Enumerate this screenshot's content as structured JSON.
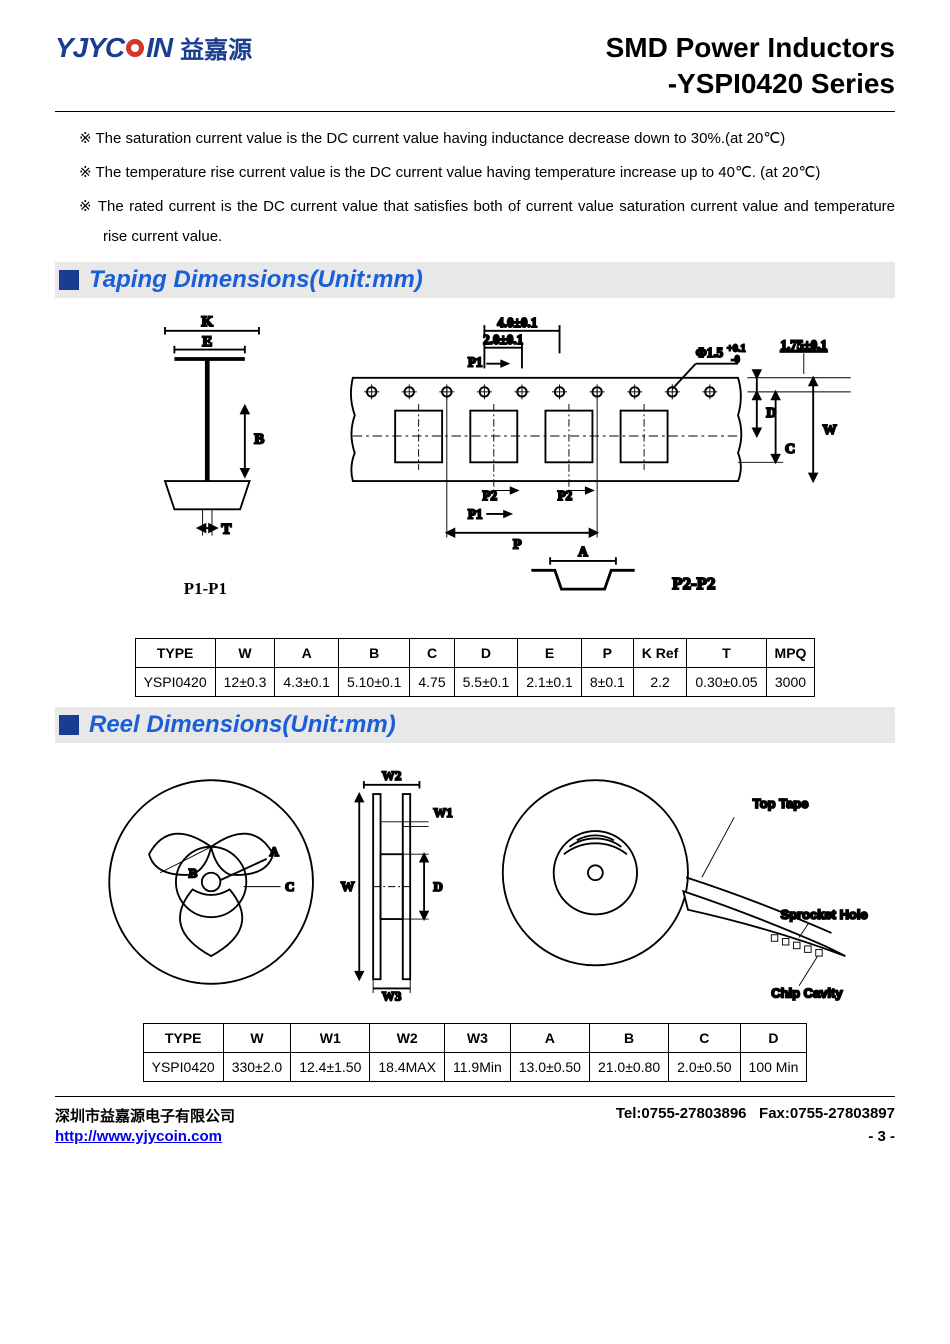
{
  "header": {
    "logo_en": "YJYC  IN",
    "logo_cn": "益嘉源",
    "title1": "SMD Power Inductors",
    "title2": "-YSPI0420 Series"
  },
  "notes": [
    "The saturation current value is the DC current value having inductance decrease down to 30%.(at 20℃)",
    "The temperature rise current value is the DC current value having temperature increase up to 40℃. (at 20℃)",
    "The rated current is the DC current value that satisfies both of current value saturation current value and temperature rise current value."
  ],
  "section1": {
    "title": "Taping Dimensions(Unit:mm)"
  },
  "section2": {
    "title": "Reel Dimensions(Unit:mm)"
  },
  "taping_diagram": {
    "labels": {
      "K": "K",
      "E": "E",
      "B": "B",
      "T": "T",
      "P1P1": "P1-P1",
      "d40": "4.0±0.1",
      "d20": "2.0±0.1",
      "P1": "P1",
      "P2": "P2",
      "P": "P",
      "A": "A",
      "phi": "Φ1.5",
      "phi_tol": "+0.1\n -0",
      "d175": "1.75±0.1",
      "C": "C",
      "D": "D",
      "W": "W",
      "P2P2": "P2-P2"
    },
    "stroke": "#000000",
    "stroke_w": 1.5
  },
  "taping_table": {
    "columns": [
      "TYPE",
      "W",
      "A",
      "B",
      "C",
      "D",
      "E",
      "P",
      "K Ref",
      "T",
      "MPQ"
    ],
    "rows": [
      [
        "YSPI0420",
        "12±0.3",
        "4.3±0.1",
        "5.10±0.1",
        "4.75",
        "5.5±0.1",
        "2.1±0.1",
        "8±0.1",
        "2.2",
        "0.30±0.05",
        "3000"
      ]
    ]
  },
  "reel_diagram": {
    "labels": {
      "A": "A",
      "B": "B",
      "C": "C",
      "D": "D",
      "W": "W",
      "W1": "W1",
      "W2": "W2",
      "W3": "W3",
      "top_tape": "Top Tape",
      "sprocket": "Sprocket Hole",
      "chip": "Chip Cavity"
    },
    "stroke": "#000000"
  },
  "reel_table": {
    "columns": [
      "TYPE",
      "W",
      "W1",
      "W2",
      "W3",
      "A",
      "B",
      "C",
      "D"
    ],
    "rows": [
      [
        "YSPI0420",
        "330±2.0",
        "12.4±1.50",
        "18.4MAX",
        "11.9Min",
        "13.0±0.50",
        "21.0±0.80",
        "2.0±0.50",
        "100 Min"
      ]
    ]
  },
  "footer": {
    "company": "深圳市益嘉源电子有限公司",
    "tel": "Tel:0755-27803896",
    "fax": "Fax:0755-27803897",
    "url": "http://www.yjycoin.com",
    "page": "- 3 -"
  }
}
